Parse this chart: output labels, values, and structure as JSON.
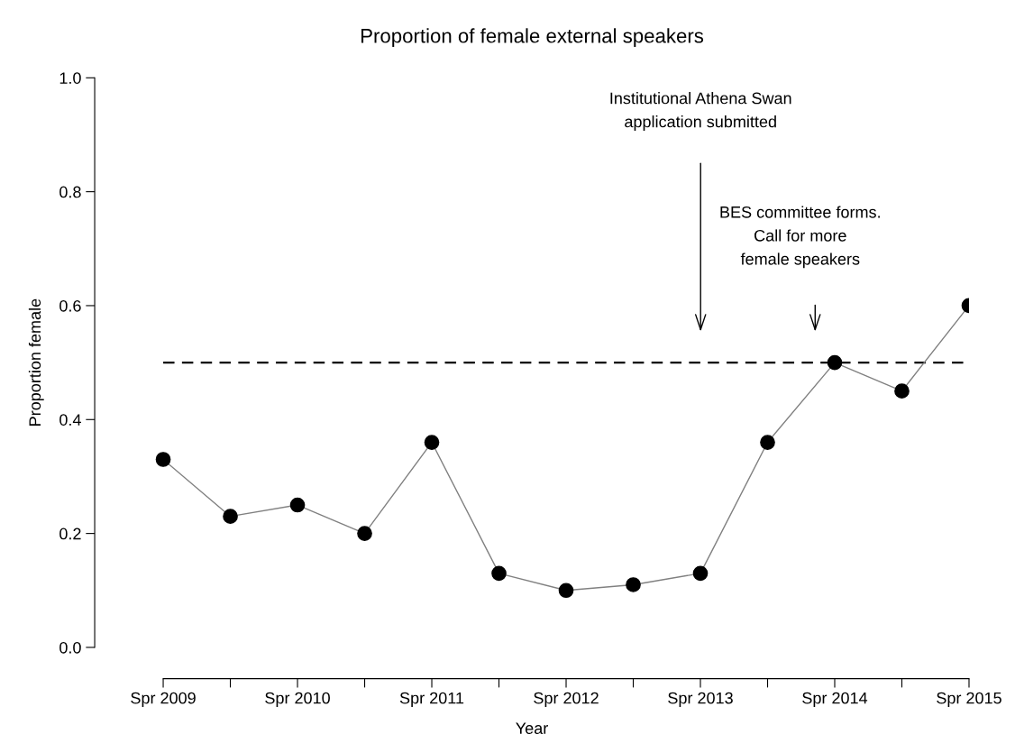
{
  "chart_data": {
    "type": "line",
    "title": "Proportion of female external speakers",
    "xlabel": "Year",
    "ylabel": "Proportion female",
    "categories": [
      "Spr 2009",
      null,
      "Spr 2010",
      null,
      "Spr 2011",
      null,
      "Spr 2012",
      null,
      "Spr 2013",
      null,
      "Spr 2014",
      null,
      "Spr 2015"
    ],
    "series": [
      {
        "color": "#000000",
        "values": [
          0.33,
          0.23,
          0.25,
          0.2,
          0.36,
          0.13,
          0.1,
          0.11,
          0.13,
          0.36,
          0.5,
          0.45,
          0.6
        ]
      }
    ],
    "ylim": [
      0,
      1
    ],
    "yticks": [
      {
        "value": 0,
        "label": "0.0"
      },
      0.2,
      0.4,
      0.6,
      0.8,
      {
        "value": 1,
        "label": "1.0"
      }
    ],
    "ref_lines": [
      {
        "axis": "y",
        "value": 0.5,
        "color": "#000000",
        "line_style": "dashed"
      }
    ],
    "annotations": [
      "Institutional Athena Swan\napplication submitted",
      "BES committee forms.\nCall for more\nfemale speakers"
    ],
    "marker": "circle",
    "grid": false,
    "legend": false
  }
}
